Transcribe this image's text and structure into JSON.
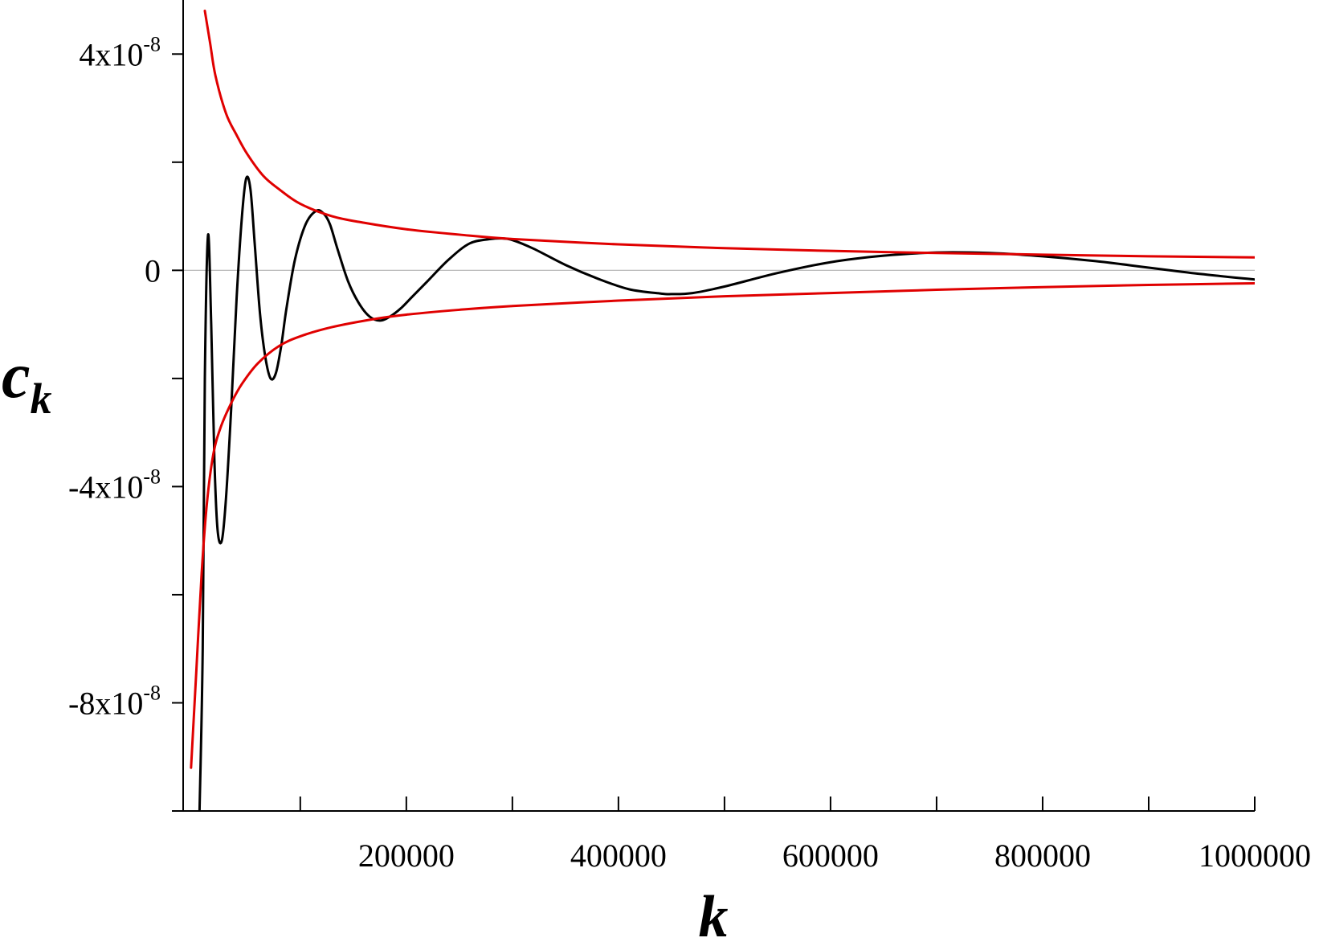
{
  "chart_data": {
    "type": "line",
    "title": "",
    "xlabel": "k",
    "ylabel": {
      "base": "c",
      "subscript": "k"
    },
    "xlim": [
      -15000,
      1000000
    ],
    "ylim": [
      -1e-07,
      5e-08
    ],
    "x_ticks": [
      {
        "value": 100000,
        "label": ""
      },
      {
        "value": 200000,
        "label": "200000"
      },
      {
        "value": 300000,
        "label": ""
      },
      {
        "value": 400000,
        "label": "400000"
      },
      {
        "value": 500000,
        "label": ""
      },
      {
        "value": 600000,
        "label": "600000"
      },
      {
        "value": 700000,
        "label": ""
      },
      {
        "value": 800000,
        "label": "800000"
      },
      {
        "value": 900000,
        "label": ""
      },
      {
        "value": 1000000,
        "label": "1000000"
      }
    ],
    "y_ticks": [
      {
        "value": 4e-08,
        "mantissa": "4x10",
        "exponent": "-8"
      },
      {
        "value": 2e-08,
        "mantissa": "",
        "exponent": ""
      },
      {
        "value": 0,
        "mantissa": "0",
        "exponent": ""
      },
      {
        "value": -2e-08,
        "mantissa": "",
        "exponent": ""
      },
      {
        "value": -4e-08,
        "mantissa": "-4x10",
        "exponent": "-8"
      },
      {
        "value": -6e-08,
        "mantissa": "",
        "exponent": ""
      },
      {
        "value": -8e-08,
        "mantissa": "-8x10",
        "exponent": "-8"
      }
    ],
    "zero_line": true,
    "grid": false,
    "series": [
      {
        "color": "#000000",
        "x": [
          5000,
          8000,
          10000,
          13000,
          16000,
          19000,
          22000,
          26000,
          30000,
          35000,
          40000,
          45000,
          49000,
          53000,
          57000,
          62000,
          67000,
          72000,
          77000,
          82000,
          87000,
          95000,
          105000,
          115000,
          122000,
          128000,
          135000,
          145000,
          155000,
          165000,
          175000,
          185000,
          195000,
          205000,
          220000,
          240000,
          260000,
          280000,
          290000,
          300000,
          320000,
          350000,
          380000,
          410000,
          440000,
          450000,
          470000,
          500000,
          550000,
          600000,
          650000,
          700000,
          750000,
          800000,
          850000,
          900000,
          950000,
          1000000
        ],
        "y": [
          -1e-07,
          -7e-08,
          -2e-08,
          6.5e-09,
          -1e-08,
          -3.5e-08,
          -4.8e-08,
          -5e-08,
          -4.2e-08,
          -2.5e-08,
          -5e-09,
          1e-08,
          1.7e-08,
          1.5e-08,
          5e-09,
          -8e-09,
          -1.6e-08,
          -2e-08,
          -1.9e-08,
          -1.4e-08,
          -7e-09,
          2e-09,
          8.5e-09,
          1.1e-08,
          1.05e-08,
          8.5e-09,
          4e-09,
          -2e-09,
          -6e-09,
          -8.5e-09,
          -9.3e-09,
          -8.5e-09,
          -7e-09,
          -5e-09,
          -2e-09,
          2e-09,
          5e-09,
          5.8e-09,
          5.9e-09,
          5.6e-09,
          4e-09,
          1e-09,
          -1.5e-09,
          -3.5e-09,
          -4.3e-09,
          -4.4e-09,
          -4.2e-09,
          -3e-09,
          -5e-10,
          1.5e-09,
          2.7e-09,
          3.3e-09,
          3.2e-09,
          2.6e-09,
          1.7e-09,
          5e-10,
          -7e-10,
          -1.7e-09
        ]
      },
      {
        "color": "#e00000",
        "x": [
          10000,
          15000,
          20000,
          30000,
          40000,
          50000,
          65000,
          80000,
          100000,
          130000,
          160000,
          200000,
          250000,
          300000,
          400000,
          500000,
          600000,
          700000,
          800000,
          900000,
          1000000
        ],
        "y": [
          4.8e-08,
          4.2e-08,
          3.6e-08,
          2.9e-08,
          2.5e-08,
          2.15e-08,
          1.75e-08,
          1.5e-08,
          1.23e-08,
          1e-08,
          8.8e-09,
          7.6e-09,
          6.6e-09,
          5.8e-09,
          4.8e-09,
          4.1e-09,
          3.6e-09,
          3.2e-09,
          2.9e-09,
          2.6e-09,
          2.4e-09
        ]
      },
      {
        "color": "#e00000",
        "x": [
          -3000,
          2000,
          7000,
          12000,
          18000,
          25000,
          35000,
          45000,
          60000,
          80000,
          100000,
          130000,
          170000,
          200000,
          250000,
          300000,
          400000,
          500000,
          600000,
          700000,
          800000,
          900000,
          1000000
        ],
        "y": [
          -9.2e-08,
          -7.4e-08,
          -5.6e-08,
          -4.3e-08,
          -3.4e-08,
          -2.9e-08,
          -2.45e-08,
          -2.1e-08,
          -1.72e-08,
          -1.4e-08,
          -1.22e-08,
          -1.05e-08,
          -9e-09,
          -8.2e-09,
          -7.3e-09,
          -6.6e-09,
          -5.6e-09,
          -4.8e-09,
          -4.2e-09,
          -3.6e-09,
          -3.1e-09,
          -2.7e-09,
          -2.4e-09
        ]
      }
    ]
  }
}
